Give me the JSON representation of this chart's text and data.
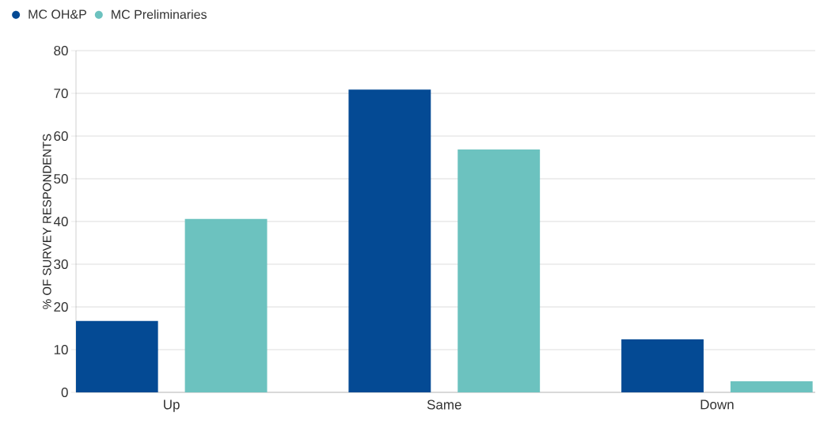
{
  "chart_data": {
    "type": "bar",
    "ylabel": "% OF SURVEY RESPONDENTS",
    "categories": [
      "Up",
      "Same",
      "Down"
    ],
    "series": [
      {
        "name": "MC OH&P",
        "color": "#044a94",
        "values": [
          16.7,
          70.9,
          12.4
        ]
      },
      {
        "name": "MC Preliminaries",
        "color": "#6cc2bf",
        "values": [
          40.6,
          56.9,
          2.6
        ]
      }
    ],
    "ylim": [
      0,
      80
    ],
    "yticks": [
      0,
      10,
      20,
      30,
      40,
      50,
      60,
      70,
      80
    ],
    "grid": "y",
    "legend": "top left"
  }
}
